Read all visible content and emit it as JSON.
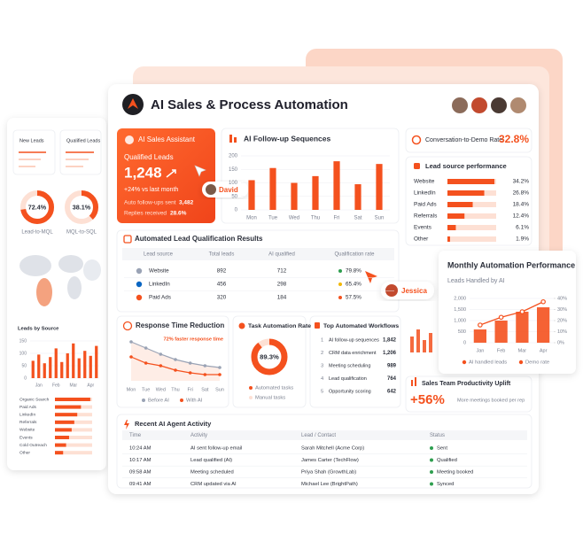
{
  "header": {
    "title": "AI Sales & Process Automation"
  },
  "assistant": {
    "title": "AI Sales Assistant",
    "metric_label": "Qualified Leads",
    "metric": "1,248",
    "change": "+24% vs last month",
    "followups_label": "Auto follow-ups sent",
    "followups": "3,482",
    "replies_label": "Replies received",
    "replies": "28.6%"
  },
  "tags": [
    "David",
    "Jessica"
  ],
  "followup_chart": {
    "type": "bar",
    "title": "AI Follow-up Sequences",
    "categories": [
      "Mon",
      "Tue",
      "Wed",
      "Thu",
      "Fri",
      "Sat",
      "Sun"
    ],
    "values": [
      110,
      155,
      100,
      125,
      180,
      95,
      170
    ],
    "color": "#f4511e",
    "ylim": [
      0,
      200
    ],
    "yticks": [
      0,
      50,
      100,
      150,
      200
    ],
    "grid": true
  },
  "demo_rate": {
    "label": "Conversation-to-Demo Rate",
    "value": "32.8%"
  },
  "lead_source": {
    "title": "Lead source performance",
    "color": "#f4511e",
    "rows": [
      {
        "name": "Website",
        "value": 34.2,
        "label": "34.2%"
      },
      {
        "name": "LinkedIn",
        "value": 26.8,
        "label": "26.8%"
      },
      {
        "name": "Paid Ads",
        "value": 18.4,
        "label": "18.4%"
      },
      {
        "name": "Referrals",
        "value": 12.4,
        "label": "12.4%"
      },
      {
        "name": "Events",
        "value": 6.1,
        "label": "6.1%"
      },
      {
        "name": "Other",
        "value": 1.9,
        "label": "1.9%"
      }
    ]
  },
  "qualification": {
    "title": "Automated Lead Qualification Results",
    "columns": [
      "Lead source",
      "Total leads",
      "AI qualified",
      "Qualification rate"
    ],
    "rows": [
      [
        "Website",
        892,
        712,
        "79.8%"
      ],
      [
        "LinkedIn",
        456,
        298,
        "65.4%"
      ],
      [
        "Paid Ads",
        320,
        184,
        "57.5%"
      ]
    ],
    "rate_colors": [
      "#2e9e4f",
      "#f2b705",
      "#f4511e"
    ]
  },
  "monthly": {
    "type": "bar",
    "title": "Monthly Automation Performance",
    "subtitle": "Leads Handled by AI",
    "categories": [
      "Jan",
      "Feb",
      "Mar",
      "Apr"
    ],
    "series": [
      {
        "name": "AI handled leads",
        "color": "#f4511e",
        "values": [
          600,
          1000,
          1400,
          1600
        ]
      },
      {
        "name": "Demo rate",
        "color": "#f4511e",
        "type": "line",
        "axis": "y2",
        "values": [
          16,
          23,
          28,
          37
        ]
      }
    ],
    "ylim": [
      0,
      2000
    ],
    "yticks": [
      0,
      500,
      {
        "value": 1000,
        "label": "1,000"
      },
      {
        "value": 1500,
        "label": "1,500"
      },
      {
        "value": 2000,
        "label": "2,000"
      }
    ],
    "y2lim": [
      0,
      40
    ],
    "y2ticks": [
      {
        "value": 0,
        "label": "0%"
      },
      {
        "value": 10,
        "label": "10%"
      },
      {
        "value": 20,
        "label": "20%"
      },
      {
        "value": 30,
        "label": "30%"
      },
      {
        "value": 40,
        "label": "40%"
      }
    ]
  },
  "response": {
    "type": "line",
    "title": "Response Time Reduction",
    "annotation": "72% faster response time",
    "categories": [
      "Mon",
      "Tue",
      "Wed",
      "Thu",
      "Fri",
      "Sat",
      "Sun"
    ],
    "series": [
      {
        "name": "Before AI",
        "color": "#9aa3b5",
        "values": [
          8.8,
          7.4,
          6,
          4.8,
          4,
          3.4,
          3
        ]
      },
      {
        "name": "With AI",
        "color": "#f4511e",
        "values": [
          5.4,
          4,
          3.4,
          2.4,
          1.8,
          1.4,
          1.4
        ]
      }
    ]
  },
  "task": {
    "title": "Task Automation Rate",
    "value": 89.3,
    "label": "89.3%",
    "legend": [
      "Automated tasks",
      "Manual tasks"
    ],
    "colors": [
      "#f4511e",
      "#fde0d4"
    ]
  },
  "workflows": {
    "title": "Top Automated Workflows",
    "rows": [
      {
        "rank": 1,
        "name": "AI follow-up sequences",
        "count": "1,842"
      },
      {
        "rank": 2,
        "name": "CRM data enrichment",
        "count": "1,206"
      },
      {
        "rank": 3,
        "name": "Meeting scheduling",
        "count": "989"
      },
      {
        "rank": 4,
        "name": "Lead qualification",
        "count": "764"
      },
      {
        "rank": 5,
        "name": "Opportunity scoring",
        "count": "642"
      }
    ]
  },
  "productivity": {
    "title": "Sales Team Productivity Uplift",
    "value": "+56%",
    "caption": "More meetings booked per rep"
  },
  "activity": {
    "title": "Recent AI Agent Activity",
    "columns": [
      "Time",
      "Activity",
      "Lead / Contact",
      "Status"
    ],
    "rows": [
      [
        "10:24 AM",
        "AI sent follow-up email",
        "Sarah Mitchell (Acme Corp)",
        "Sent"
      ],
      [
        "10:17 AM",
        "Lead qualified (AI)",
        "James Carter (TechFlow)",
        "Qualified"
      ],
      [
        "09:58 AM",
        "Meeting scheduled",
        "Priya Shah (GrowthLab)",
        "Meeting booked"
      ],
      [
        "09:41 AM",
        "CRM updated via AI",
        "Michael Lee (BrightPath)",
        "Synced"
      ]
    ]
  },
  "side": {
    "cards": [
      "New Leads",
      "Qualified Leads"
    ],
    "donuts": [
      {
        "value": 72.4,
        "label": "72.4%",
        "caption": "Lead-to-MQL"
      },
      {
        "value": 38.1,
        "label": "38.1%",
        "caption": "MQL-to-SQL"
      }
    ],
    "leads_chart": {
      "type": "bar",
      "title": "Leads by Source",
      "categories": [
        null,
        "Jan",
        null,
        null,
        "Feb",
        null,
        null,
        "Mar",
        null,
        null,
        "Apr",
        null
      ],
      "values": [
        70,
        95,
        60,
        85,
        120,
        65,
        100,
        140,
        80,
        110,
        90,
        130
      ],
      "color": "#f4511e",
      "ylim": [
        0,
        150
      ],
      "yticks": [
        0,
        50,
        100,
        150
      ],
      "grid": true
    },
    "sources": {
      "categories": [
        "Organic Search",
        "Paid Ads",
        "LinkedIn",
        "Referrals",
        "Website",
        "Events",
        "Cold Outreach",
        "Other"
      ],
      "values": [
        95,
        70,
        60,
        52,
        45,
        38,
        30,
        22
      ],
      "color": "#f4511e"
    }
  }
}
